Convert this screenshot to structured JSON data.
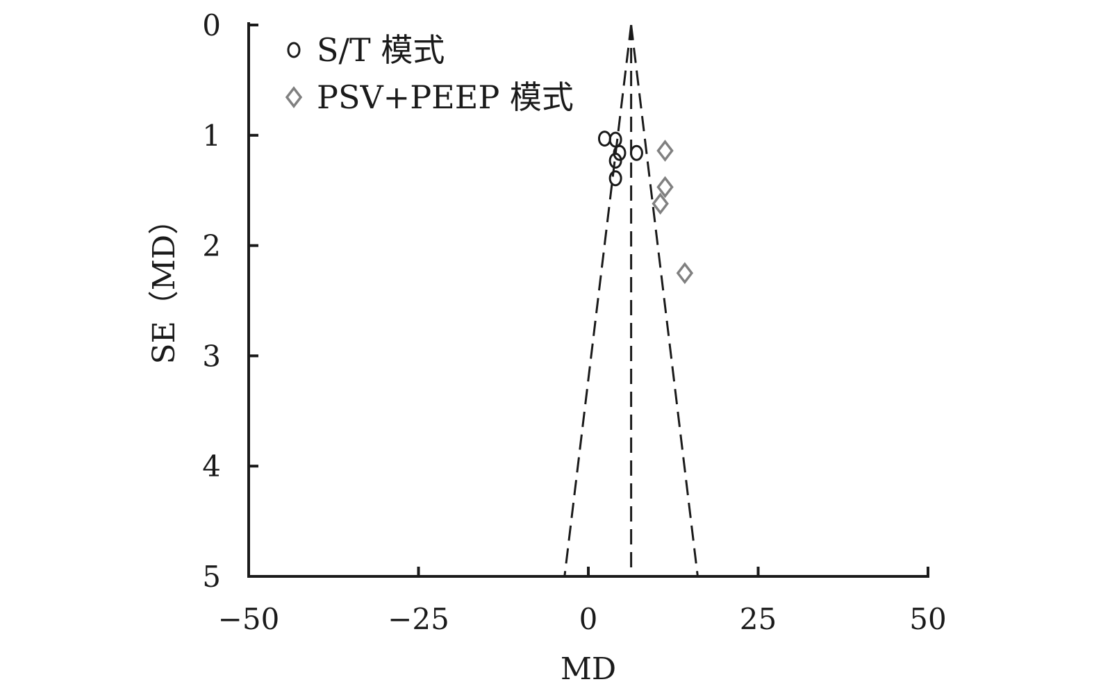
{
  "chart_data": {
    "type": "scatter",
    "title": "",
    "xlabel": "MD",
    "ylabel": "SE（MD）",
    "xlim": [
      -50,
      50
    ],
    "ylim": [
      0,
      5
    ],
    "y_inverted": true,
    "xticks": [
      -50,
      -25,
      0,
      25,
      50
    ],
    "xtick_labels": [
      "−50",
      "−25",
      "0",
      "25",
      "50"
    ],
    "yticks": [
      0,
      1,
      2,
      3,
      4,
      5
    ],
    "ytick_labels": [
      "0",
      "1",
      "2",
      "3",
      "4",
      "5"
    ],
    "grid": false,
    "legend_position": "top-left",
    "funnel": {
      "pooled_md": 6.3,
      "ci_multiplier": 1.96,
      "se_max": 5
    },
    "series": [
      {
        "name": "S/T 模式",
        "marker": "circle",
        "color": "#1a1a1a",
        "points": [
          {
            "x": 2.4,
            "y": 1.03
          },
          {
            "x": 4.0,
            "y": 1.04
          },
          {
            "x": 4.6,
            "y": 1.16
          },
          {
            "x": 7.1,
            "y": 1.16
          },
          {
            "x": 4.0,
            "y": 1.23
          },
          {
            "x": 4.0,
            "y": 1.39
          }
        ]
      },
      {
        "name": "PSV+PEEP 模式",
        "marker": "diamond",
        "color": "#808080",
        "points": [
          {
            "x": 11.3,
            "y": 1.14
          },
          {
            "x": 11.3,
            "y": 1.47
          },
          {
            "x": 10.6,
            "y": 1.62
          },
          {
            "x": 14.2,
            "y": 2.25
          }
        ]
      }
    ]
  }
}
